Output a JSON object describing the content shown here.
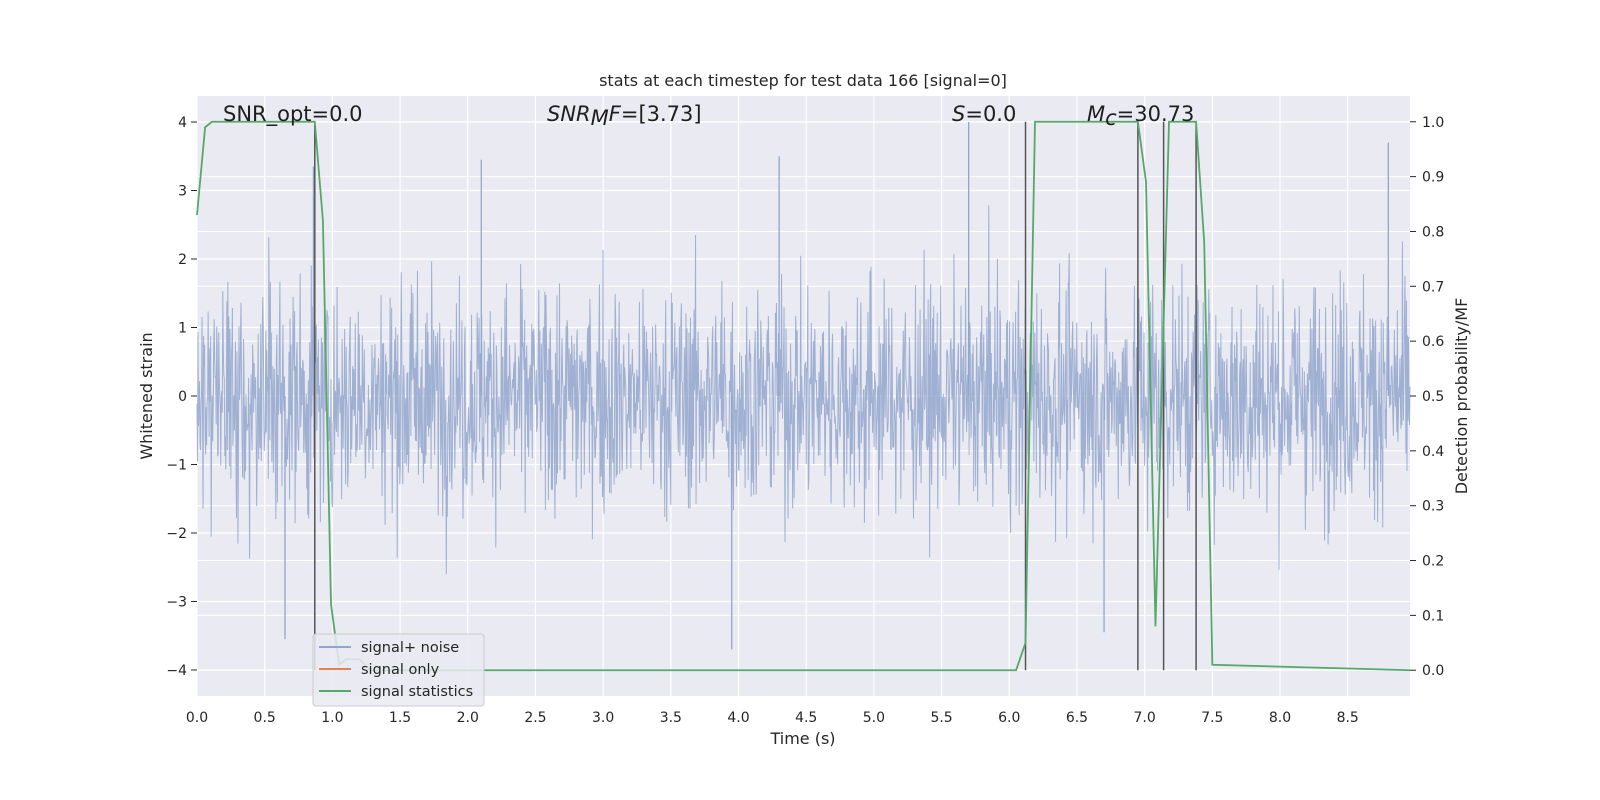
{
  "chart_data": {
    "type": "line",
    "title": "stats at each timestep for test data 166 [signal=0]",
    "xlabel": "Time (s)",
    "ylabel_left": "Whitened strain",
    "ylabel_right": "Detection probability/MF",
    "xlim": [
      0.0,
      8.96
    ],
    "ylim_left": [
      -4.38,
      4.38
    ],
    "ylim_right": [
      -0.047,
      1.047
    ],
    "x_ticks": [
      "0.0",
      "0.5",
      "1.0",
      "1.5",
      "2.0",
      "2.5",
      "3.0",
      "3.5",
      "4.0",
      "4.5",
      "5.0",
      "5.5",
      "6.0",
      "6.5",
      "7.0",
      "7.5",
      "8.0",
      "8.5"
    ],
    "y_ticks_left": [
      "−4",
      "−3",
      "−2",
      "−1",
      "0",
      "1",
      "2",
      "3",
      "4"
    ],
    "y_ticks_right": [
      "0.0",
      "0.1",
      "0.2",
      "0.3",
      "0.4",
      "0.5",
      "0.6",
      "0.7",
      "0.8",
      "0.9",
      "1.0"
    ],
    "grid": true,
    "legend_position": "lower-left",
    "annotations": {
      "snr_opt": "SNR_opt=0.0",
      "snr_mf_base": "SNR",
      "snr_mf_sub": "M",
      "snr_mf_tail": "F",
      "snr_mf_value": "=[3.73]",
      "s_var": "S",
      "s_value": "=0.0",
      "mc_var": "M",
      "mc_sub": "c",
      "mc_value": "=30.73"
    },
    "series": [
      {
        "name": "signal+ noise",
        "color": "#92a6cd",
        "axis": "left",
        "envelope": "whitened noise, |amplitude| mostly within 2.3, peaks between -3.7 and 3.7",
        "sample_peaks": [
          {
            "x": 0.86,
            "y": 3.35
          },
          {
            "x": 2.1,
            "y": 3.45
          },
          {
            "x": 4.3,
            "y": 3.5
          },
          {
            "x": 5.7,
            "y": 4.0
          },
          {
            "x": 8.8,
            "y": 3.7
          },
          {
            "x": 3.95,
            "y": -3.7
          },
          {
            "x": 0.65,
            "y": -3.55
          },
          {
            "x": 6.7,
            "y": -3.45
          }
        ]
      },
      {
        "name": "signal only",
        "color": "#dd8452",
        "axis": "left",
        "x": [],
        "y": []
      },
      {
        "name": "signal statistics",
        "color": "#55a868",
        "axis": "right",
        "x": [
          0.0,
          0.06,
          0.11,
          0.87,
          0.93,
          0.99,
          1.05,
          1.1,
          1.2,
          1.28,
          6.05,
          6.12,
          6.19,
          6.95,
          7.01,
          7.08,
          7.18,
          7.38,
          7.44,
          7.5,
          8.96
        ],
        "y": [
          0.83,
          0.99,
          1.0,
          1.0,
          0.82,
          0.12,
          0.01,
          0.02,
          0.02,
          0.0,
          0.0,
          0.05,
          1.0,
          1.0,
          0.89,
          0.08,
          1.0,
          1.0,
          0.78,
          0.01,
          0.0
        ]
      }
    ],
    "vertical_markers": [
      0.87,
      6.12,
      6.95,
      7.14,
      7.38
    ]
  }
}
